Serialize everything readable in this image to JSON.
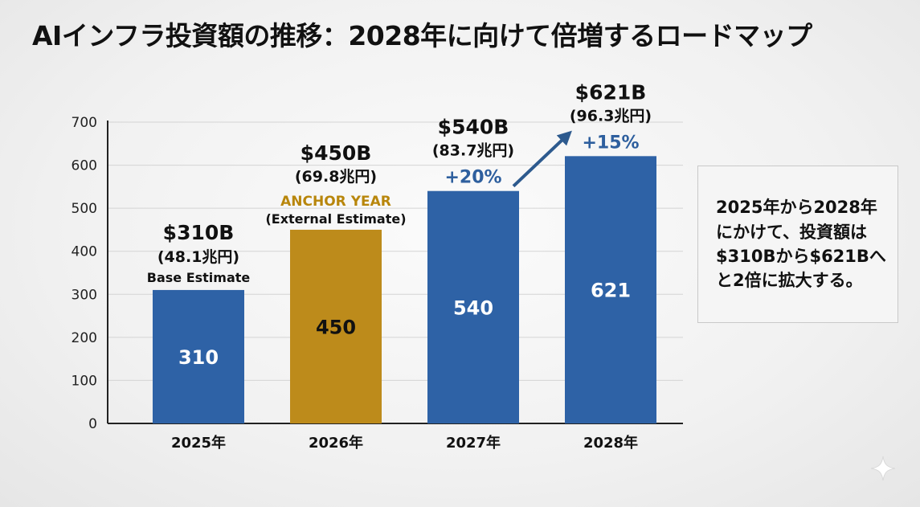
{
  "title": "AIインフラ投資額の推移：2028年に向けて倍増するロードマップ",
  "summary": "2025年から2028年にかけて、投資額は$310Bから$621Bへと2倍に拡大する。",
  "colors": {
    "blue": "#2e62a6",
    "gold": "#bd8b1b",
    "growth_text": "#2e5f9e",
    "anchor_text": "#b8860b",
    "arrow": "#2d5a8e"
  },
  "chart_data": {
    "type": "bar",
    "categories": [
      "2025年",
      "2026年",
      "2027年",
      "2028年"
    ],
    "values": [
      310,
      450,
      540,
      621
    ],
    "ylim": [
      0,
      700
    ],
    "yticks": [
      0,
      100,
      200,
      300,
      400,
      500,
      600,
      700
    ],
    "grid": true,
    "xlabel": "",
    "ylabel": "",
    "bar_colors": [
      "blue",
      "gold",
      "blue",
      "blue"
    ],
    "annotations": [
      {
        "usd": "$310B",
        "jpy": "(48.1兆円)",
        "tag": "Base Estimate",
        "tag_style": "plain"
      },
      {
        "usd": "$450B",
        "jpy": "(69.8兆円)",
        "tag": "ANCHOR YEAR",
        "tag_style": "anchor",
        "note": "(External Estimate)"
      },
      {
        "usd": "$540B",
        "jpy": "(83.7兆円)",
        "growth": "+20%"
      },
      {
        "usd": "$621B",
        "jpy": "(96.3兆円)",
        "growth": "+15%"
      }
    ]
  }
}
